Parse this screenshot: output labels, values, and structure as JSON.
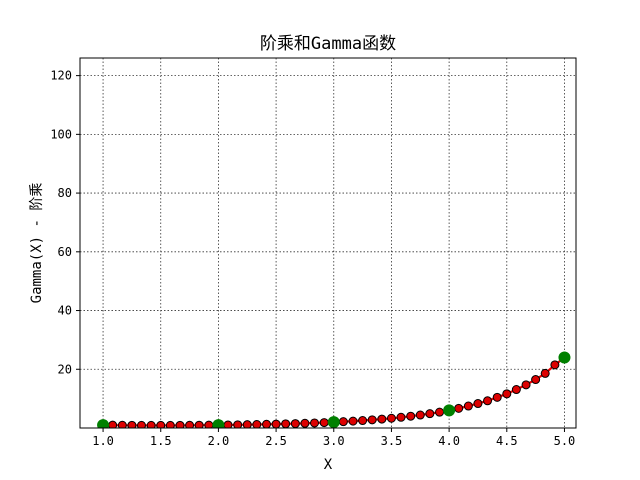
{
  "chart_data": {
    "type": "line",
    "title": "阶乘和Gamma函数",
    "xlabel": "X",
    "ylabel": "Gamma(X) - 阶乘",
    "xlim": [
      0.8,
      5.1
    ],
    "ylim": [
      0,
      126
    ],
    "xticks": [
      "1.0",
      "1.5",
      "2.0",
      "2.5",
      "3.0",
      "3.5",
      "4.0",
      "4.5",
      "5.0"
    ],
    "yticks": [
      "20",
      "40",
      "60",
      "80",
      "100",
      "120"
    ],
    "grid": true,
    "line_color": "#ee0000",
    "marker_color": "#dd0000",
    "highlight_color": "#008000",
    "series": [
      {
        "x": [
          1.0,
          1.083,
          1.167,
          1.25,
          1.333,
          1.417,
          1.5,
          1.583,
          1.667,
          1.75,
          1.833,
          1.917,
          2.0,
          2.083,
          2.167,
          2.25,
          2.333,
          2.417,
          2.5,
          2.583,
          2.667,
          2.75,
          2.833,
          2.917,
          3.0,
          3.083,
          3.167,
          3.25,
          3.333,
          3.417,
          3.5,
          3.583,
          3.667,
          3.75,
          3.833,
          3.917,
          4.0,
          4.083,
          4.167,
          4.25,
          4.333,
          4.417,
          4.5,
          4.583,
          4.667,
          4.75,
          4.833,
          4.917,
          5.0
        ],
        "y": [
          1.0,
          0.96,
          0.93,
          0.91,
          0.89,
          0.89,
          0.89,
          0.89,
          0.9,
          0.92,
          0.94,
          0.97,
          1.0,
          1.04,
          1.08,
          1.13,
          1.19,
          1.26,
          1.33,
          1.42,
          1.5,
          1.61,
          1.72,
          1.85,
          2.0,
          2.16,
          2.34,
          2.55,
          2.78,
          3.04,
          3.32,
          3.65,
          4.02,
          4.42,
          4.88,
          5.4,
          6.0,
          6.69,
          7.48,
          8.33,
          9.26,
          10.44,
          11.63,
          13.1,
          14.7,
          16.5,
          18.6,
          21.5,
          24.0
        ]
      }
    ],
    "highlight_points": [
      {
        "x": 1.0,
        "y": 1
      },
      {
        "x": 2.0,
        "y": 1
      },
      {
        "x": 3.0,
        "y": 2
      },
      {
        "x": 4.0,
        "y": 6
      },
      {
        "x": 5.0,
        "y": 24
      }
    ]
  }
}
